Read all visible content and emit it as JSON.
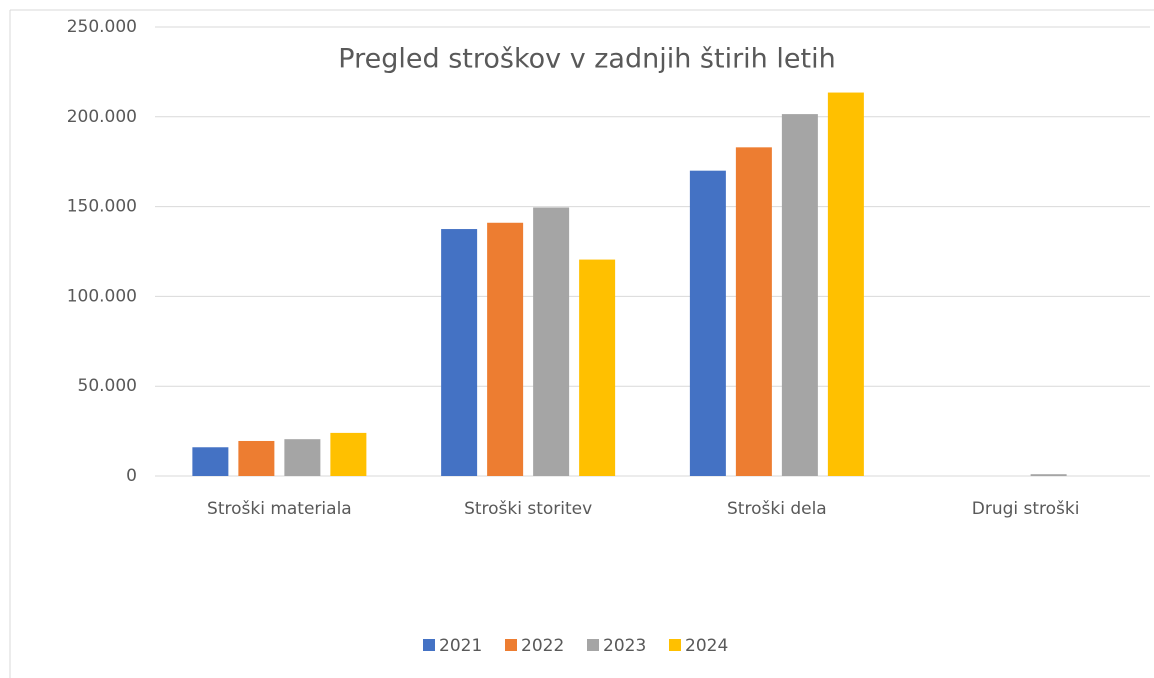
{
  "chart_data": {
    "type": "bar",
    "title": "Pregled stroškov v zadnjih štirih letih",
    "categories": [
      "Stroški materiala",
      "Stroški storitev",
      "Stroški dela",
      "Drugi stroški"
    ],
    "series": [
      {
        "name": "2021",
        "color": "#4472c4",
        "values": [
          16000,
          137500,
          170000,
          0
        ]
      },
      {
        "name": "2022",
        "color": "#ed7d31",
        "values": [
          19500,
          141000,
          183000,
          0
        ]
      },
      {
        "name": "2023",
        "color": "#a5a5a5",
        "values": [
          20500,
          149500,
          201500,
          1000
        ]
      },
      {
        "name": "2024",
        "color": "#ffc000",
        "values": [
          24000,
          120500,
          213500,
          0
        ]
      }
    ],
    "ylim": [
      0,
      250000
    ],
    "yticks": [
      0,
      {
        "value": 50000,
        "label": "50.000"
      },
      {
        "value": 100000,
        "label": "100.000"
      },
      {
        "value": 150000,
        "label": "150.000"
      },
      {
        "value": 200000,
        "label": "200.000"
      },
      {
        "value": 250000,
        "label": "250.000"
      }
    ],
    "grid": true,
    "legend": "bottom"
  }
}
